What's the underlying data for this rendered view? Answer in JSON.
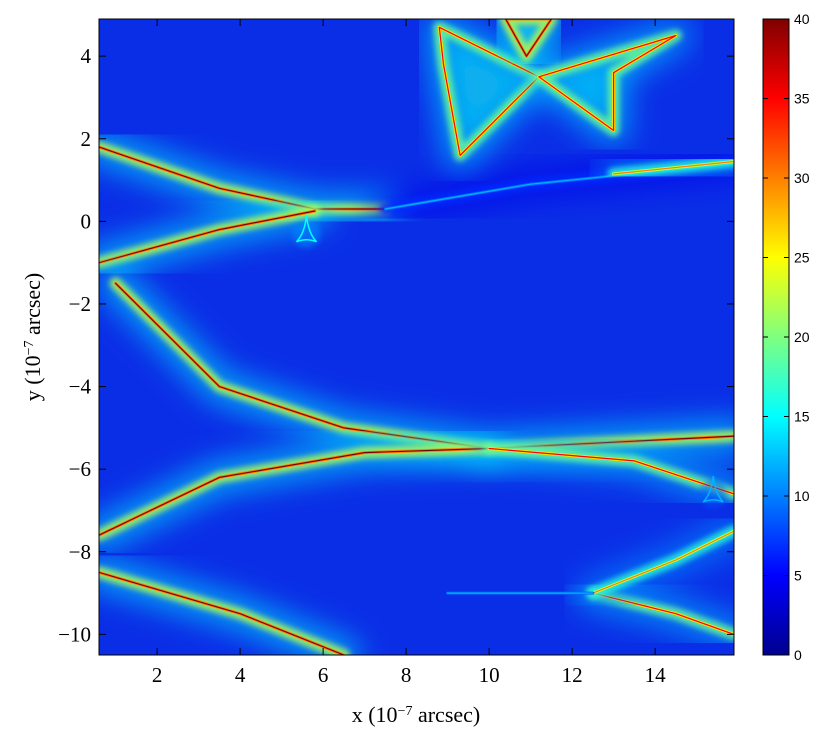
{
  "chart_data": {
    "type": "heatmap",
    "title": "",
    "xlabel": "x (10^-7 arcsec)",
    "ylabel": "y (10^-7 arcsec)",
    "xlim": [
      0.6,
      15.9
    ],
    "ylim": [
      -10.5,
      4.9
    ],
    "xticks": [
      2,
      4,
      6,
      8,
      10,
      12,
      14
    ],
    "yticks": [
      -10,
      -8,
      -6,
      -4,
      -2,
      0,
      2,
      4
    ],
    "xtick_labels": [
      "2",
      "4",
      "6",
      "8",
      "10",
      "12",
      "14"
    ],
    "ytick_labels": [
      "−10",
      "−8",
      "−6",
      "−4",
      "−2",
      "0",
      "2",
      "4"
    ],
    "colorbar": {
      "range": [
        0,
        40
      ],
      "ticks": [
        0,
        5,
        10,
        15,
        20,
        25,
        30,
        35,
        40
      ],
      "tick_labels": [
        "0",
        "5",
        "10",
        "15",
        "20",
        "25",
        "30",
        "35",
        "40"
      ],
      "colormap": "jet"
    },
    "background_level": 4,
    "caustic_features": [
      {
        "kind": "ridge",
        "points": [
          [
            0.6,
            1.8
          ],
          [
            3.5,
            0.8
          ],
          [
            5.8,
            0.3
          ],
          [
            7.5,
            0.3
          ]
        ],
        "peak": 40
      },
      {
        "kind": "ridge",
        "points": [
          [
            0.6,
            -1.0
          ],
          [
            3.5,
            -0.2
          ],
          [
            5.8,
            0.25
          ]
        ],
        "peak": 40
      },
      {
        "kind": "ridge",
        "points": [
          [
            7.5,
            0.3
          ],
          [
            11.0,
            0.9
          ],
          [
            15.9,
            1.4
          ]
        ],
        "peak": 12
      },
      {
        "kind": "ridge",
        "points": [
          [
            13.0,
            1.15
          ],
          [
            15.9,
            1.45
          ]
        ],
        "peak": 30
      },
      {
        "kind": "ridge",
        "points": [
          [
            1.0,
            -1.5
          ],
          [
            3.5,
            -4.0
          ],
          [
            6.5,
            -5.0
          ],
          [
            10.0,
            -5.5
          ],
          [
            15.9,
            -5.2
          ]
        ],
        "peak": 40
      },
      {
        "kind": "ridge",
        "points": [
          [
            0.6,
            -7.6
          ],
          [
            3.5,
            -6.2
          ],
          [
            7.0,
            -5.6
          ],
          [
            10.0,
            -5.5
          ]
        ],
        "peak": 40
      },
      {
        "kind": "ridge",
        "points": [
          [
            10.0,
            -5.5
          ],
          [
            13.5,
            -5.8
          ],
          [
            15.9,
            -6.6
          ]
        ],
        "peak": 35
      },
      {
        "kind": "ridge",
        "points": [
          [
            0.6,
            -8.5
          ],
          [
            4.0,
            -9.5
          ],
          [
            6.5,
            -10.5
          ]
        ],
        "peak": 40
      },
      {
        "kind": "ridge",
        "points": [
          [
            12.5,
            -9.0
          ],
          [
            14.5,
            -9.5
          ],
          [
            15.9,
            -10.0
          ]
        ],
        "peak": 35
      },
      {
        "kind": "ridge",
        "points": [
          [
            12.5,
            -9.0
          ],
          [
            14.5,
            -8.2
          ],
          [
            15.9,
            -7.5
          ]
        ],
        "peak": 30
      },
      {
        "kind": "ridge",
        "points": [
          [
            9.0,
            -9.0
          ],
          [
            12.5,
            -9.0
          ]
        ],
        "peak": 12
      },
      {
        "kind": "cusp-caustic",
        "points": [
          [
            8.8,
            4.7
          ],
          [
            11.2,
            3.5
          ],
          [
            9.3,
            1.6
          ],
          [
            8.9,
            3.8
          ]
        ],
        "peak": 35
      },
      {
        "kind": "cusp-caustic",
        "points": [
          [
            11.2,
            3.5
          ],
          [
            13.0,
            2.2
          ],
          [
            13.0,
            3.6
          ],
          [
            14.5,
            4.5
          ]
        ],
        "peak": 35
      },
      {
        "kind": "cusp-caustic",
        "points": [
          [
            10.4,
            4.9
          ],
          [
            10.9,
            4.0
          ],
          [
            11.5,
            4.9
          ]
        ],
        "peak": 40
      },
      {
        "kind": "small-caustic",
        "center": [
          5.6,
          -0.3
        ],
        "peak": 15
      },
      {
        "kind": "small-caustic",
        "center": [
          15.4,
          -6.6
        ],
        "peak": 12
      }
    ]
  }
}
